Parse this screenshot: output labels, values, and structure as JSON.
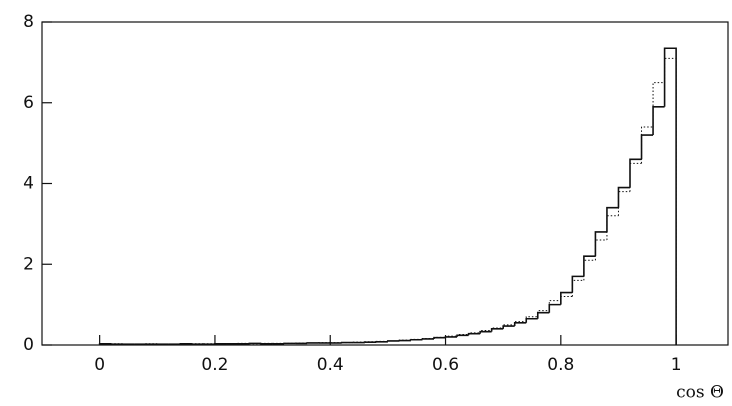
{
  "chart_data": {
    "type": "histogram",
    "xlabel": "cos Θ",
    "bins": [
      0,
      0.02,
      0.04,
      0.06,
      0.08,
      0.1,
      0.12,
      0.14,
      0.16,
      0.18,
      0.2,
      0.22,
      0.24,
      0.26,
      0.28,
      0.3,
      0.32,
      0.34,
      0.36,
      0.38,
      0.4,
      0.42,
      0.44,
      0.46,
      0.48,
      0.5,
      0.52,
      0.54,
      0.56,
      0.58,
      0.6,
      0.62,
      0.64,
      0.66,
      0.68,
      0.7,
      0.72,
      0.74,
      0.76,
      0.78,
      0.8,
      0.82,
      0.84,
      0.86,
      0.88,
      0.9,
      0.92,
      0.94,
      0.96,
      0.98,
      1
    ],
    "series": [
      {
        "color": "#111111",
        "dash": "solid",
        "values": [
          0.03,
          0.02,
          0.02,
          0.02,
          0.02,
          0.02,
          0.02,
          0.03,
          0.02,
          0.02,
          0.03,
          0.03,
          0.03,
          0.04,
          0.03,
          0.03,
          0.04,
          0.04,
          0.05,
          0.05,
          0.05,
          0.06,
          0.06,
          0.07,
          0.08,
          0.1,
          0.11,
          0.13,
          0.15,
          0.18,
          0.2,
          0.24,
          0.28,
          0.33,
          0.4,
          0.47,
          0.55,
          0.65,
          0.8,
          1.0,
          1.3,
          1.7,
          2.2,
          2.8,
          3.4,
          3.9,
          4.6,
          5.2,
          5.9,
          7.35
        ]
      },
      {
        "color": "#111111",
        "dash": "dotted",
        "values": [
          0.02,
          0.03,
          0.02,
          0.02,
          0.03,
          0.02,
          0.02,
          0.02,
          0.03,
          0.03,
          0.03,
          0.03,
          0.04,
          0.03,
          0.04,
          0.04,
          0.04,
          0.05,
          0.05,
          0.06,
          0.06,
          0.06,
          0.07,
          0.08,
          0.09,
          0.1,
          0.12,
          0.14,
          0.16,
          0.19,
          0.22,
          0.26,
          0.3,
          0.36,
          0.42,
          0.5,
          0.58,
          0.7,
          0.85,
          1.1,
          1.2,
          1.6,
          2.1,
          2.6,
          3.2,
          3.8,
          4.5,
          5.4,
          6.5,
          7.1
        ]
      }
    ],
    "xlim": [
      -0.1,
      1.09
    ],
    "ylim": [
      0,
      8
    ],
    "xticks": [
      0,
      0.2,
      0.4,
      0.6,
      0.8,
      1
    ],
    "yticks": [
      0,
      2,
      4,
      6,
      8
    ]
  }
}
